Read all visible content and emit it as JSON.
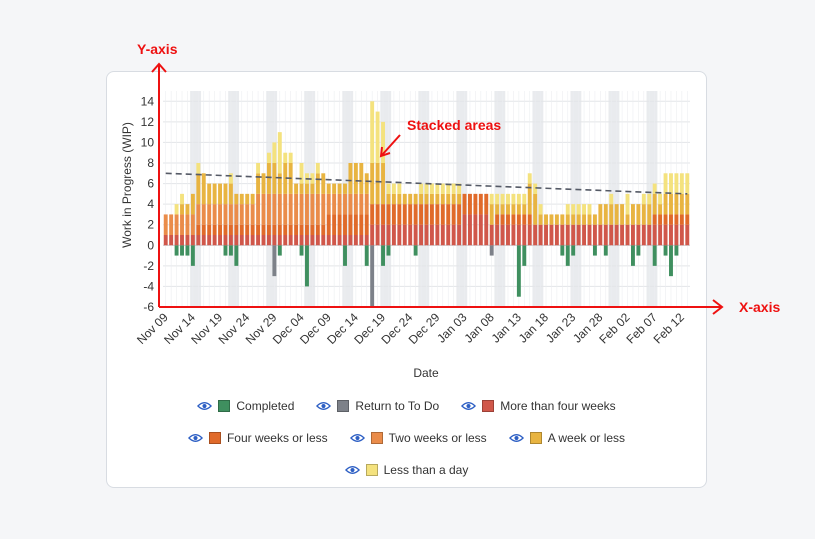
{
  "chart_data": {
    "type": "bar",
    "stacked": true,
    "ylabel": "Work in Progress (WIP)",
    "xlabel": "Date",
    "ylim": [
      -6,
      15
    ],
    "yticks": [
      -6,
      -4,
      -2,
      0,
      2,
      4,
      6,
      8,
      10,
      12,
      14
    ],
    "x_tick_labels": [
      "Nov 09",
      "Nov 14",
      "Nov 19",
      "Nov 24",
      "Nov 29",
      "Dec 04",
      "Dec 09",
      "Dec 14",
      "Dec 19",
      "Dec 24",
      "Dec 29",
      "Jan 03",
      "Jan 08",
      "Jan 13",
      "Jan 18",
      "Jan 23",
      "Jan 28",
      "Feb 02",
      "Feb 07",
      "Feb 12"
    ],
    "categories": [
      "Nov 09",
      "Nov 10",
      "Nov 11",
      "Nov 12",
      "Nov 13",
      "Nov 14",
      "Nov 15",
      "Nov 16",
      "Nov 17",
      "Nov 18",
      "Nov 19",
      "Nov 20",
      "Nov 21",
      "Nov 22",
      "Nov 23",
      "Nov 24",
      "Nov 25",
      "Nov 26",
      "Nov 27",
      "Nov 28",
      "Nov 29",
      "Nov 30",
      "Dec 01",
      "Dec 02",
      "Dec 03",
      "Dec 04",
      "Dec 05",
      "Dec 06",
      "Dec 07",
      "Dec 08",
      "Dec 09",
      "Dec 10",
      "Dec 11",
      "Dec 12",
      "Dec 13",
      "Dec 14",
      "Dec 15",
      "Dec 16",
      "Dec 17",
      "Dec 18",
      "Dec 19",
      "Dec 20",
      "Dec 21",
      "Dec 22",
      "Dec 23",
      "Dec 24",
      "Dec 25",
      "Dec 26",
      "Dec 27",
      "Dec 28",
      "Dec 29",
      "Dec 30",
      "Dec 31",
      "Jan 01",
      "Jan 02",
      "Jan 03",
      "Jan 04",
      "Jan 05",
      "Jan 06",
      "Jan 07",
      "Jan 08",
      "Jan 09",
      "Jan 10",
      "Jan 11",
      "Jan 12",
      "Jan 13",
      "Jan 14",
      "Jan 15",
      "Jan 16",
      "Jan 17",
      "Jan 18",
      "Jan 19",
      "Jan 20",
      "Jan 21",
      "Jan 22",
      "Jan 23",
      "Jan 24",
      "Jan 25",
      "Jan 26",
      "Jan 27",
      "Jan 28",
      "Jan 29",
      "Jan 30",
      "Jan 31",
      "Feb 01",
      "Feb 02",
      "Feb 03",
      "Feb 04",
      "Feb 05",
      "Feb 06",
      "Feb 07",
      "Feb 08",
      "Feb 09",
      "Feb 10",
      "Feb 11",
      "Feb 12",
      "Feb 13"
    ],
    "weekend_bands": [
      [
        5,
        7
      ],
      [
        12,
        14
      ],
      [
        19,
        21
      ],
      [
        26,
        28
      ],
      [
        33,
        35
      ],
      [
        40,
        42
      ],
      [
        47,
        49
      ],
      [
        54,
        56
      ],
      [
        61,
        63
      ],
      [
        68,
        70
      ],
      [
        75,
        77
      ],
      [
        82,
        84
      ],
      [
        89,
        91
      ]
    ],
    "series": [
      {
        "name": "Completed",
        "color": "#3f8f5f",
        "values": [
          0,
          0,
          -1,
          -1,
          -1,
          -2,
          0,
          0,
          0,
          0,
          0,
          -1,
          -1,
          -2,
          0,
          0,
          0,
          0,
          0,
          0,
          0,
          -1,
          0,
          0,
          0,
          -1,
          -4,
          0,
          0,
          0,
          0,
          0,
          0,
          -2,
          0,
          0,
          0,
          -2,
          0,
          0,
          -2,
          -1,
          0,
          0,
          0,
          0,
          -1,
          0,
          0,
          0,
          0,
          0,
          0,
          0,
          0,
          0,
          0,
          0,
          0,
          0,
          0,
          0,
          0,
          0,
          0,
          -5,
          -2,
          0,
          0,
          0,
          0,
          0,
          0,
          -1,
          -2,
          -1,
          0,
          0,
          0,
          -1,
          0,
          -1,
          0,
          0,
          0,
          0,
          -2,
          -1,
          0,
          0,
          -2,
          0,
          -1,
          -3,
          -1,
          0,
          0
        ]
      },
      {
        "name": "Return to To Do",
        "color": "#7d8189",
        "values": [
          0,
          0,
          0,
          0,
          0,
          0,
          0,
          0,
          0,
          0,
          0,
          0,
          0,
          0,
          0,
          0,
          0,
          0,
          0,
          0,
          -3,
          0,
          0,
          0,
          0,
          0,
          0,
          0,
          0,
          0,
          0,
          0,
          0,
          0,
          0,
          0,
          0,
          0,
          -6,
          0,
          0,
          0,
          0,
          0,
          0,
          0,
          0,
          0,
          0,
          0,
          0,
          0,
          0,
          0,
          0,
          0,
          0,
          0,
          0,
          0,
          -1,
          0,
          0,
          0,
          0,
          0,
          0,
          0,
          0,
          0,
          0,
          0,
          0,
          0,
          0,
          0,
          0,
          0,
          0,
          0,
          0,
          0,
          0,
          0,
          0,
          0,
          0,
          0,
          0,
          0,
          0,
          0,
          0,
          0,
          0,
          0,
          0
        ]
      },
      {
        "name": "More than four weeks",
        "color": "#d0574a",
        "values": [
          1,
          1,
          1,
          1,
          1,
          1,
          1,
          1,
          1,
          1,
          1,
          1,
          1,
          1,
          1,
          1,
          1,
          1,
          1,
          1,
          1,
          1,
          1,
          1,
          1,
          1,
          1,
          1,
          1,
          1,
          1,
          1,
          1,
          1,
          1,
          1,
          1,
          1,
          2,
          2,
          2,
          2,
          2,
          2,
          2,
          2,
          2,
          2,
          2,
          2,
          2,
          2,
          2,
          2,
          2,
          3,
          3,
          3,
          3,
          3,
          2,
          2,
          2,
          2,
          2,
          2,
          2,
          2,
          2,
          2,
          2,
          2,
          2,
          2,
          2,
          2,
          2,
          2,
          2,
          2,
          2,
          2,
          2,
          2,
          2,
          2,
          2,
          2,
          2,
          2,
          2,
          2,
          2,
          2,
          2,
          2,
          2
        ]
      },
      {
        "name": "Four weeks or less",
        "color": "#e06a2a",
        "values": [
          0,
          0,
          0,
          0,
          0,
          0,
          1,
          1,
          1,
          1,
          1,
          1,
          1,
          1,
          1,
          1,
          1,
          1,
          1,
          1,
          1,
          1,
          1,
          1,
          1,
          1,
          1,
          1,
          1,
          1,
          2,
          2,
          2,
          2,
          2,
          2,
          2,
          2,
          2,
          2,
          2,
          2,
          2,
          2,
          2,
          2,
          2,
          2,
          2,
          2,
          2,
          2,
          2,
          2,
          2,
          2,
          2,
          2,
          2,
          2,
          0,
          1,
          1,
          1,
          1,
          1,
          1,
          1,
          0,
          0,
          0,
          0,
          0,
          0,
          0,
          0,
          0,
          0,
          0,
          0,
          0,
          0,
          0,
          0,
          0,
          0,
          0,
          0,
          0,
          0,
          1,
          1,
          1,
          1,
          1,
          1,
          1
        ]
      },
      {
        "name": "Two weeks or less",
        "color": "#ea8c4a",
        "values": [
          2,
          2,
          2,
          2,
          2,
          2,
          2,
          2,
          2,
          2,
          2,
          2,
          2,
          2,
          2,
          2,
          2,
          3,
          3,
          3,
          3,
          3,
          3,
          3,
          3,
          3,
          3,
          3,
          3,
          3,
          2,
          2,
          2,
          2,
          2,
          2,
          2,
          2,
          0,
          0,
          0,
          0,
          0,
          0,
          0,
          0,
          0,
          0,
          0,
          0,
          0,
          0,
          0,
          0,
          0,
          0,
          0,
          0,
          0,
          0,
          0,
          0,
          0,
          0,
          0,
          0,
          0,
          0,
          0,
          0,
          0,
          0,
          0,
          0,
          0,
          0,
          0,
          0,
          0,
          0,
          0,
          0,
          0,
          0,
          0,
          0,
          0,
          0,
          0,
          0,
          0,
          0,
          0,
          0,
          0,
          0,
          0
        ]
      },
      {
        "name": "A week or less",
        "color": "#e8b441",
        "values": [
          0,
          0,
          0,
          1,
          1,
          2,
          3,
          3,
          2,
          2,
          2,
          2,
          2,
          1,
          1,
          1,
          1,
          2,
          2,
          3,
          3,
          2,
          3,
          3,
          1,
          1,
          1,
          1,
          2,
          2,
          1,
          1,
          1,
          1,
          3,
          3,
          3,
          2,
          4,
          4,
          4,
          1,
          1,
          1,
          1,
          1,
          1,
          1,
          1,
          1,
          1,
          1,
          1,
          1,
          1,
          0,
          0,
          0,
          0,
          0,
          2,
          1,
          1,
          1,
          1,
          1,
          1,
          3,
          3,
          1,
          1,
          1,
          1,
          1,
          1,
          1,
          1,
          1,
          1,
          1,
          2,
          2,
          2,
          2,
          2,
          1,
          2,
          2,
          2,
          2,
          2,
          1,
          2,
          2,
          2,
          2,
          2
        ]
      },
      {
        "name": "Less than a day",
        "color": "#f4e27e",
        "values": [
          0,
          0,
          1,
          1,
          0,
          0,
          1,
          0,
          0,
          0,
          0,
          0,
          1,
          0,
          0,
          0,
          0,
          1,
          0,
          1,
          2,
          4,
          1,
          1,
          0,
          2,
          1,
          1,
          1,
          0,
          0,
          0,
          0,
          0,
          0,
          0,
          0,
          0,
          6,
          5,
          4,
          1,
          1,
          1,
          0,
          0,
          0,
          1,
          1,
          1,
          1,
          1,
          1,
          1,
          1,
          0,
          0,
          0,
          0,
          0,
          1,
          1,
          1,
          1,
          1,
          1,
          1,
          1,
          1,
          1,
          0,
          0,
          0,
          0,
          1,
          1,
          1,
          1,
          1,
          0,
          0,
          0,
          1,
          0,
          0,
          2,
          0,
          0,
          1,
          1,
          1,
          1,
          2,
          2,
          2,
          2,
          2
        ]
      }
    ],
    "trend_line": {
      "start": 7.0,
      "end": 5.0,
      "style": "dashed",
      "color": "#555a66"
    },
    "annotations": {
      "y_axis_label": "Y-axis",
      "x_axis_label": "X-axis",
      "callout": "Stacked areas"
    }
  },
  "legend": {
    "items": [
      {
        "name": "Completed",
        "color": "#3f8f5f"
      },
      {
        "name": "Return to To Do",
        "color": "#7d8189"
      },
      {
        "name": "More than four weeks",
        "color": "#d0574a"
      },
      {
        "name": "Four weeks or less",
        "color": "#e06a2a"
      },
      {
        "name": "Two weeks or less",
        "color": "#ea8c4a"
      },
      {
        "name": "A week or less",
        "color": "#e8b441"
      },
      {
        "name": "Less than a day",
        "color": "#f4e27e"
      }
    ]
  },
  "accent_color": "#ee1111"
}
